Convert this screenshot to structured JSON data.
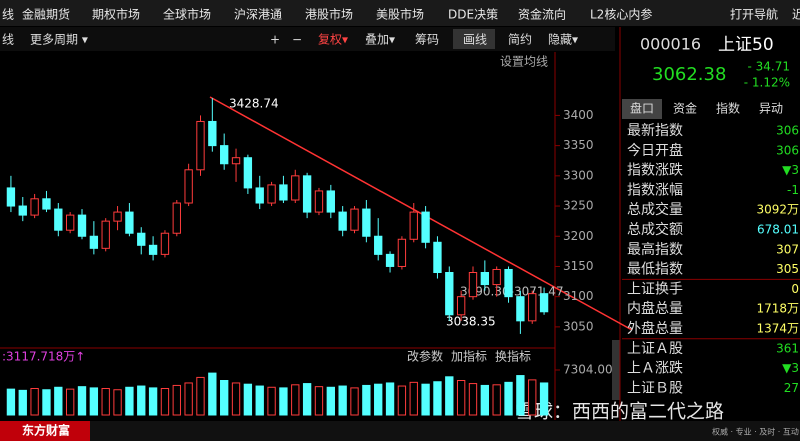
{
  "menu": [
    "线",
    "金融期货",
    "期权市场",
    "全球市场",
    "沪深港通",
    "港股市场",
    "美股市场",
    "DDE决策",
    "资金流向",
    "L2核心内参",
    "打开导航",
    "近"
  ],
  "toolbar": [
    "线",
    "更多周期 ▾",
    "+",
    "−",
    "复权▾",
    "叠加▾",
    "筹码",
    "画线",
    "简约",
    "隐藏▾"
  ],
  "quote": {
    "code": "000016",
    "name": "上证50",
    "price": "3062.38",
    "change": "- 34.71",
    "percent": "- 1.12%"
  },
  "tabs": [
    "盘口",
    "资金",
    "指数",
    "异动"
  ],
  "rows": [
    [
      "最新指数",
      "306"
    ],
    [
      "今日开盘",
      "306"
    ],
    [
      "指数涨跌",
      "▼3"
    ],
    [
      "指数涨幅",
      "-1"
    ],
    [
      "总成交量",
      "3092万"
    ],
    [
      "总成交额",
      "678.01"
    ],
    [
      "最高指数",
      "307"
    ],
    [
      "最低指数",
      "305"
    ],
    [
      "上证换手",
      "0"
    ],
    [
      "内盘总量",
      "1718万"
    ],
    [
      "外盘总量",
      "1374万"
    ],
    [
      "上证Ａ股",
      "361"
    ],
    [
      "上Ａ涨跌",
      "▼3"
    ],
    [
      "上证Ｂ股",
      "27"
    ]
  ],
  "chart": {
    "type": "candlestick",
    "setting": "设置均线",
    "ylim": [
      3020,
      3500
    ],
    "yticks": [
      3050,
      3100,
      3150,
      3200,
      3250,
      3300,
      3350,
      3400
    ],
    "up_color": "#ff3c3c",
    "down_color": "#54ffff",
    "candles": {
      "open": [
        3280,
        3250,
        3235,
        3262,
        3245,
        3210,
        3235,
        3200,
        3180,
        3225,
        3240,
        3205,
        3185,
        3170,
        3205,
        3255,
        3310,
        3390,
        3350,
        3320,
        3330,
        3280,
        3255,
        3285,
        3260,
        3300,
        3240,
        3275,
        3240,
        3210,
        3245,
        3200,
        3170,
        3150,
        3195,
        3240,
        3190,
        3140,
        3070,
        3100,
        3140,
        3120,
        3145,
        3100,
        3060,
        3105
      ],
      "high": [
        3300,
        3265,
        3270,
        3275,
        3255,
        3240,
        3245,
        3225,
        3230,
        3250,
        3255,
        3215,
        3200,
        3210,
        3260,
        3320,
        3400,
        3428.74,
        3370,
        3345,
        3335,
        3300,
        3290,
        3300,
        3310,
        3305,
        3280,
        3285,
        3250,
        3250,
        3260,
        3230,
        3175,
        3200,
        3255,
        3250,
        3200,
        3150,
        3110,
        3150,
        3160,
        3150,
        3150,
        3110,
        3110,
        3115
      ],
      "low": [
        3240,
        3225,
        3230,
        3240,
        3200,
        3205,
        3195,
        3170,
        3175,
        3210,
        3200,
        3170,
        3160,
        3165,
        3200,
        3250,
        3300,
        3340,
        3310,
        3290,
        3270,
        3245,
        3250,
        3255,
        3255,
        3230,
        3235,
        3230,
        3200,
        3205,
        3190,
        3160,
        3140,
        3145,
        3190,
        3180,
        3130,
        3060,
        3060,
        3095,
        3110,
        3100,
        3090,
        3038.35,
        3055,
        3070
      ],
      "close": [
        3250,
        3235,
        3262,
        3245,
        3210,
        3235,
        3200,
        3180,
        3225,
        3240,
        3205,
        3185,
        3170,
        3205,
        3255,
        3310,
        3390,
        3350,
        3320,
        3330,
        3280,
        3255,
        3285,
        3260,
        3300,
        3240,
        3275,
        3240,
        3210,
        3245,
        3200,
        3170,
        3150,
        3195,
        3240,
        3190,
        3140,
        3070,
        3100,
        3140,
        3120,
        3145,
        3100,
        3060,
        3105,
        3075
      ]
    },
    "annotations": {
      "high": "3428.74",
      "low": "3038.35",
      "range": "3090.30-3071.47"
    },
    "volume": {
      "label": ":3117.718万↑",
      "buttons": [
        "改参数",
        "加指标",
        "换指标"
      ],
      "ylim": [
        0,
        7304
      ],
      "yticks": [
        {
          "value": 7304,
          "label": "7304.00"
        }
      ],
      "values": [
        4200,
        4000,
        4300,
        4100,
        4500,
        4200,
        4600,
        4400,
        4300,
        4100,
        4500,
        4700,
        4400,
        4300,
        4800,
        5200,
        6100,
        6800,
        5600,
        5200,
        5000,
        4700,
        4500,
        4400,
        4900,
        5100,
        4600,
        4500,
        4700,
        4400,
        4800,
        5000,
        5200,
        4700,
        5300,
        5000,
        5400,
        6200,
        5600,
        5100,
        4800,
        4900,
        5300,
        6400,
        5700,
        5200
      ]
    }
  },
  "footer": {
    "brand": "东方财富",
    "watermark": "雪球：西西的富二代之路",
    "tags": "权威 · 专业 · 及时 · 互动"
  }
}
